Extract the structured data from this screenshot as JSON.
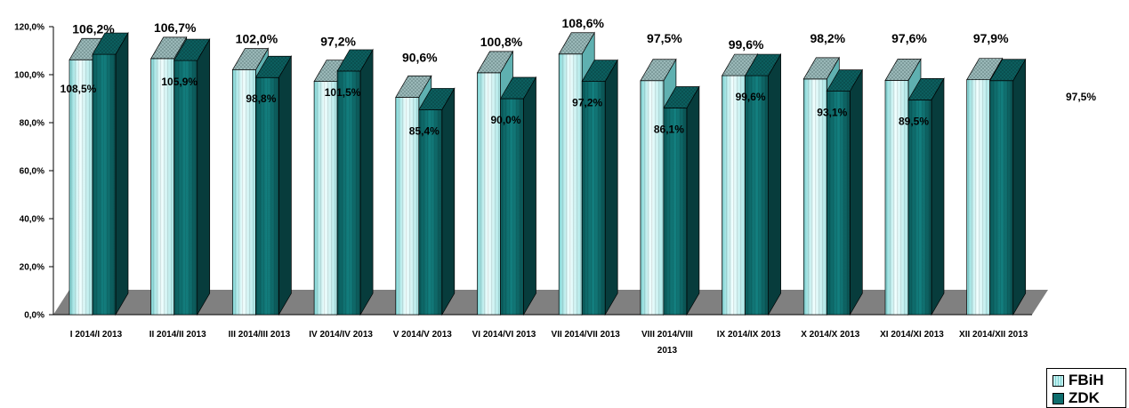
{
  "chart_data": {
    "type": "bar",
    "categories": [
      "I 2014/I 2013",
      "II 2014/II 2013",
      "III 2014/III 2013",
      "IV 2014/IV 2013",
      "V 2014/V 2013",
      "VI 2014/VI 2013",
      "VII 2014/VII 2013",
      "VIII 2014/VIII 2013",
      "IX 2014/IX 2013",
      "X 2014/X 2013",
      "XI 2014/XI 2013",
      "XII 2014/XII 2013"
    ],
    "series": [
      {
        "name": "FBiH",
        "values": [
          106.2,
          106.7,
          102.0,
          97.2,
          90.6,
          100.8,
          108.6,
          97.5,
          99.6,
          98.2,
          97.6,
          97.9
        ],
        "labels": [
          "106,2%",
          "106,7%",
          "102,0%",
          "97,2%",
          "90,6%",
          "100,8%",
          "108,6%",
          "97,5%",
          "99,6%",
          "98,2%",
          "97,6%",
          "97,9%"
        ],
        "color": "#c8f0f0"
      },
      {
        "name": "ZDK",
        "values": [
          108.5,
          105.9,
          98.8,
          101.5,
          85.4,
          90.0,
          97.2,
          86.1,
          99.6,
          93.1,
          89.5,
          97.5
        ],
        "labels": [
          "108,5%",
          "105,9%",
          "98,8%",
          "101,5%",
          "85,4%",
          "90,0%",
          "97,2%",
          "86,1%",
          "99,6%",
          "93,1%",
          "89,5%",
          "97,5%"
        ],
        "color": "#0e6e6e"
      }
    ],
    "y_ticks": [
      "0,0%",
      "20,0%",
      "40,0%",
      "60,0%",
      "80,0%",
      "100,0%",
      "120,0%"
    ],
    "ylim": [
      0,
      120
    ],
    "grid": false,
    "legend_position": "bottom-right",
    "title": "",
    "xlabel": "",
    "ylabel": ""
  },
  "legend": {
    "items": [
      "FBiH",
      "ZDK"
    ]
  }
}
